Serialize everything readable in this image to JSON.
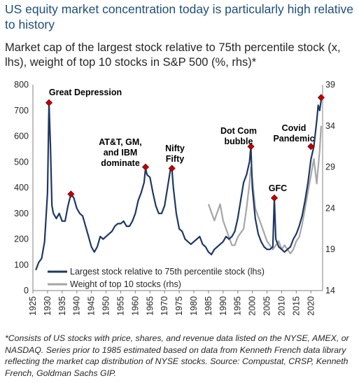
{
  "title": "US equity market concentration today is particularly high relative to history",
  "subtitle": "Market cap of the largest stock relative to 75th percentile stock (x, lhs), weight of top 10 stocks in S&P 500 (%, rhs)*",
  "footnote": "*Consists of US stocks with price, shares, and revenue data listed on the NYSE, AMEX, or NASDAQ. Series prior to 1985 estimated based on data from Kenneth French data library reflecting the market cap distribution of NYSE stocks. Source: Compustat, CRSP, Kenneth French, Goldman Sachs GIP.",
  "colors": {
    "title": "#1f4e79",
    "lhs_series": "#1f3864",
    "rhs_series": "#a6a6a6",
    "marker": "#c00000"
  },
  "chart_data": {
    "type": "line",
    "grid": false,
    "legend_position": "bottom-left",
    "xlim": [
      1925,
      2024
    ],
    "x_ticks": [
      "1925",
      "1930",
      "1935",
      "1940",
      "1945",
      "1950",
      "1955",
      "1960",
      "1965",
      "1970",
      "1975",
      "1980",
      "1985",
      "1990",
      "1995",
      "2000",
      "2005",
      "2010",
      "2015",
      "2020"
    ],
    "y_left": {
      "lim": [
        0,
        800
      ],
      "ticks": [
        "0",
        "100",
        "200",
        "300",
        "400",
        "500",
        "600",
        "700",
        "800"
      ]
    },
    "y_right": {
      "lim": [
        14,
        39
      ],
      "ticks": [
        "14",
        "19",
        "24",
        "29",
        "34",
        "39"
      ]
    },
    "series": [
      {
        "name": "Largest stock relative to 75th percentile stock (lhs)",
        "axis": "left",
        "color": "#1f3864",
        "x": [
          1926,
          1927,
          1928,
          1929,
          1930,
          1930.5,
          1931,
          1931.5,
          1932,
          1933,
          1934,
          1935,
          1936,
          1937,
          1938,
          1939,
          1940,
          1941,
          1942,
          1943,
          1944,
          1945,
          1946,
          1947,
          1948,
          1949,
          1950,
          1951,
          1952,
          1953,
          1954,
          1955,
          1956,
          1957,
          1958,
          1959,
          1960,
          1961,
          1962,
          1963,
          1963.5,
          1964,
          1965,
          1966,
          1967,
          1968,
          1969,
          1970,
          1971,
          1972,
          1972.5,
          1973,
          1974,
          1975,
          1976,
          1977,
          1978,
          1979,
          1980,
          1981,
          1982,
          1983,
          1984,
          1985,
          1986,
          1987,
          1988,
          1989,
          1990,
          1991,
          1992,
          1993,
          1994,
          1995,
          1996,
          1997,
          1998,
          1999,
          1999.5,
          2000,
          2001,
          2002,
          2003,
          2004,
          2005,
          2006,
          2007,
          2007.5,
          2008,
          2009,
          2010,
          2011,
          2012,
          2013,
          2014,
          2015,
          2016,
          2017,
          2018,
          2019,
          2020,
          2021,
          2022,
          2022.5,
          2023,
          2023.5
        ],
        "y": [
          80,
          110,
          125,
          190,
          380,
          730,
          560,
          330,
          300,
          280,
          300,
          270,
          270,
          330,
          375,
          360,
          320,
          300,
          290,
          250,
          210,
          170,
          150,
          170,
          210,
          200,
          210,
          220,
          230,
          250,
          260,
          260,
          270,
          250,
          250,
          270,
          300,
          350,
          380,
          420,
          475,
          450,
          440,
          380,
          330,
          300,
          300,
          330,
          400,
          470,
          475,
          400,
          300,
          240,
          230,
          200,
          190,
          180,
          190,
          200,
          210,
          180,
          170,
          150,
          140,
          160,
          170,
          180,
          190,
          210,
          200,
          210,
          230,
          280,
          350,
          420,
          450,
          500,
          560,
          400,
          280,
          220,
          190,
          170,
          160,
          160,
          170,
          360,
          200,
          170,
          160,
          150,
          160,
          170,
          200,
          220,
          250,
          290,
          350,
          420,
          510,
          560,
          660,
          720,
          700,
          740
        ]
      },
      {
        "name": "Weight of top 10 stocks (rhs)",
        "axis": "right",
        "color": "#a6a6a6",
        "x": [
          1985,
          1986,
          1987,
          1988,
          1989,
          1990,
          1991,
          1992,
          1993,
          1994,
          1995,
          1996,
          1997,
          1998,
          1999,
          1999.5,
          2000,
          2001,
          2002,
          2003,
          2004,
          2005,
          2006,
          2007,
          2008,
          2009,
          2010,
          2011,
          2012,
          2013,
          2014,
          2015,
          2016,
          2017,
          2018,
          2019,
          2020,
          2021,
          2022,
          2023,
          2023.5
        ],
        "y": [
          24.5,
          23.5,
          22.5,
          23.5,
          24.5,
          22.5,
          21.5,
          20.5,
          19.5,
          19.5,
          20.5,
          21,
          21.5,
          24,
          27,
          29,
          27.5,
          24,
          23,
          22,
          21,
          20,
          19.5,
          19,
          19.5,
          20,
          19,
          19.5,
          19,
          18.5,
          19,
          20,
          20.5,
          22,
          24,
          26,
          28,
          30,
          27,
          31,
          34
        ]
      }
    ],
    "markers": [
      {
        "label": "Great Depression",
        "x": 1930.5,
        "y": 730
      },
      {
        "label": "",
        "x": 1938,
        "y": 375
      },
      {
        "label": "AT&T, GM, and IBM dominate",
        "x": 1963.5,
        "y": 480
      },
      {
        "label": "Nifty Fifty",
        "x": 1972.5,
        "y": 475
      },
      {
        "label": "Dot Com bubble",
        "x": 1999.5,
        "y": 560
      },
      {
        "label": "GFC",
        "x": 2007.5,
        "y": 360
      },
      {
        "label": "Covid Pandemic",
        "x": 2020,
        "y": 560
      },
      {
        "label": "",
        "x": 2023.5,
        "y": 750
      }
    ]
  }
}
